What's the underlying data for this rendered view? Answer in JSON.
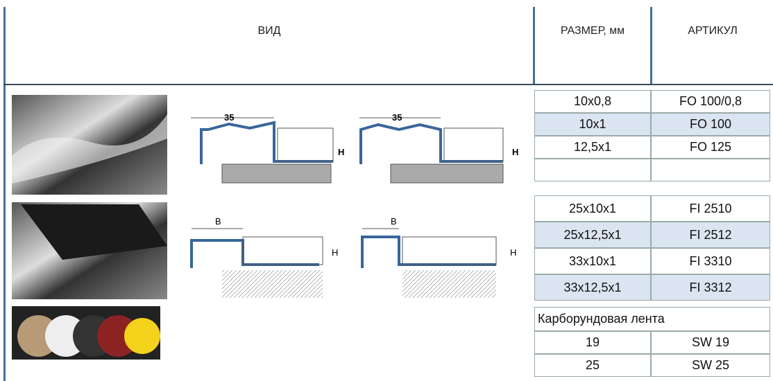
{
  "header": {
    "columns": [
      "ВИД",
      "РАЗМЕР, мм",
      "АРТИКУЛ"
    ]
  },
  "table": {
    "rows": [
      [
        "10x0,8",
        "FO 100/0,8"
      ],
      [
        "10x1",
        "FO 100"
      ],
      [
        "12,5x1",
        "FO 125"
      ],
      [
        "25x10x1",
        "FI 2510"
      ],
      [
        "25x12,5x1",
        "FI 2512"
      ],
      [
        "33x10x1",
        "FI 3310"
      ],
      [
        "33x12,5x1",
        "FI 3312"
      ]
    ]
  },
  "tape": {
    "label": "Карборундовая лента",
    "rows": [
      [
        "19",
        "SW 19"
      ],
      [
        "25",
        "SW 25"
      ]
    ]
  },
  "diagrams": [
    {
      "width_label": "35",
      "height_label": "H"
    },
    {
      "width_label": "35",
      "height_label": "H"
    },
    {
      "width_label": "B",
      "height_label": "H"
    },
    {
      "width_label": "B",
      "height_label": "H"
    }
  ]
}
